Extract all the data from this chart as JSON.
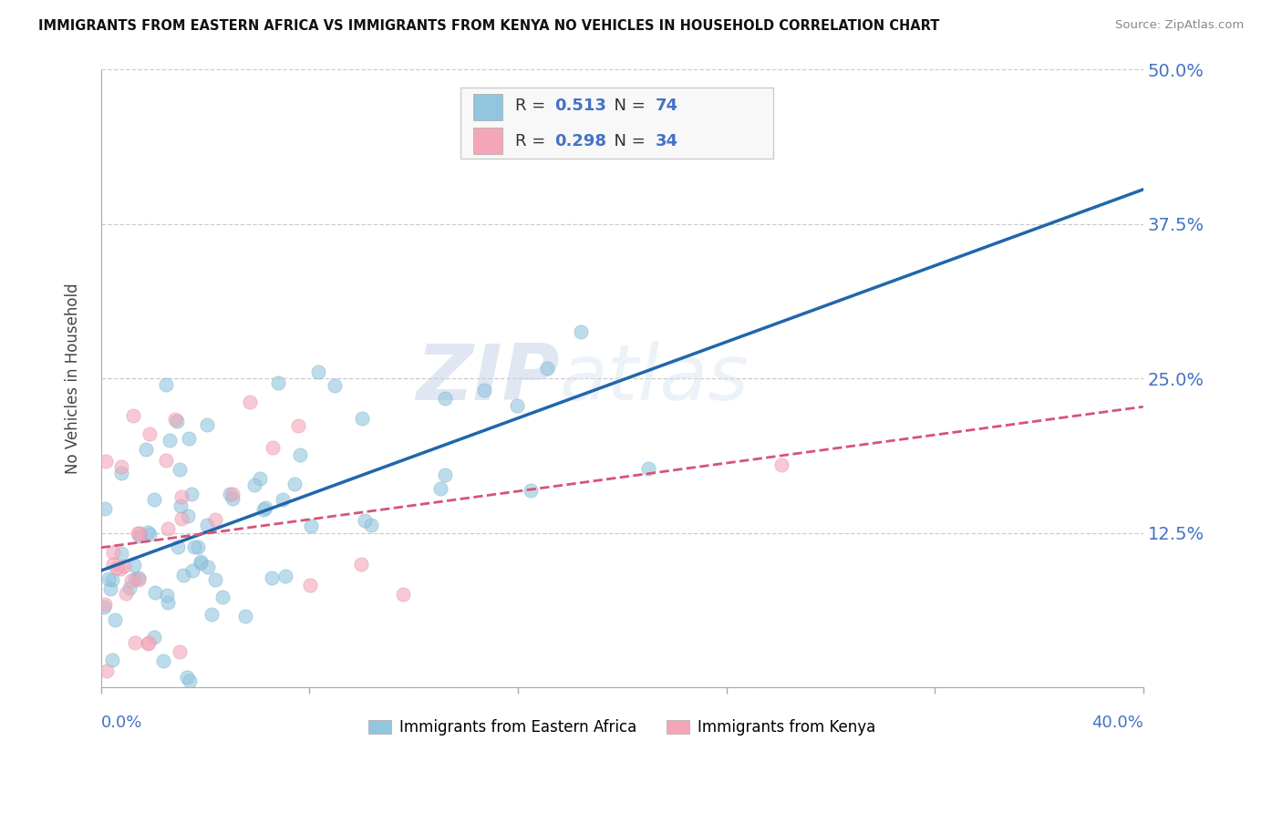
{
  "title": "IMMIGRANTS FROM EASTERN AFRICA VS IMMIGRANTS FROM KENYA NO VEHICLES IN HOUSEHOLD CORRELATION CHART",
  "source": "Source: ZipAtlas.com",
  "ylabel": "No Vehicles in Household",
  "blue_color": "#92c5de",
  "pink_color": "#f4a6b8",
  "blue_line_color": "#2166ac",
  "pink_line_color": "#d6537a",
  "watermark_zip": "ZIP",
  "watermark_atlas": "atlas",
  "R_blue": "0.513",
  "N_blue": "74",
  "R_pink": "0.298",
  "N_pink": "34",
  "xmin": 0.0,
  "xmax": 0.4,
  "ymin": 0.0,
  "ymax": 0.5,
  "yticks": [
    0.0,
    0.125,
    0.25,
    0.375,
    0.5
  ],
  "yticklabels": [
    "",
    "12.5%",
    "25.0%",
    "37.5%",
    "50.0%"
  ],
  "xtick_left": "0.0%",
  "xtick_right": "40.0%",
  "legend_items": [
    "Immigrants from Eastern Africa",
    "Immigrants from Kenya"
  ],
  "tick_color": "#4472c4",
  "grid_color": "#cccccc",
  "background_color": "#ffffff"
}
